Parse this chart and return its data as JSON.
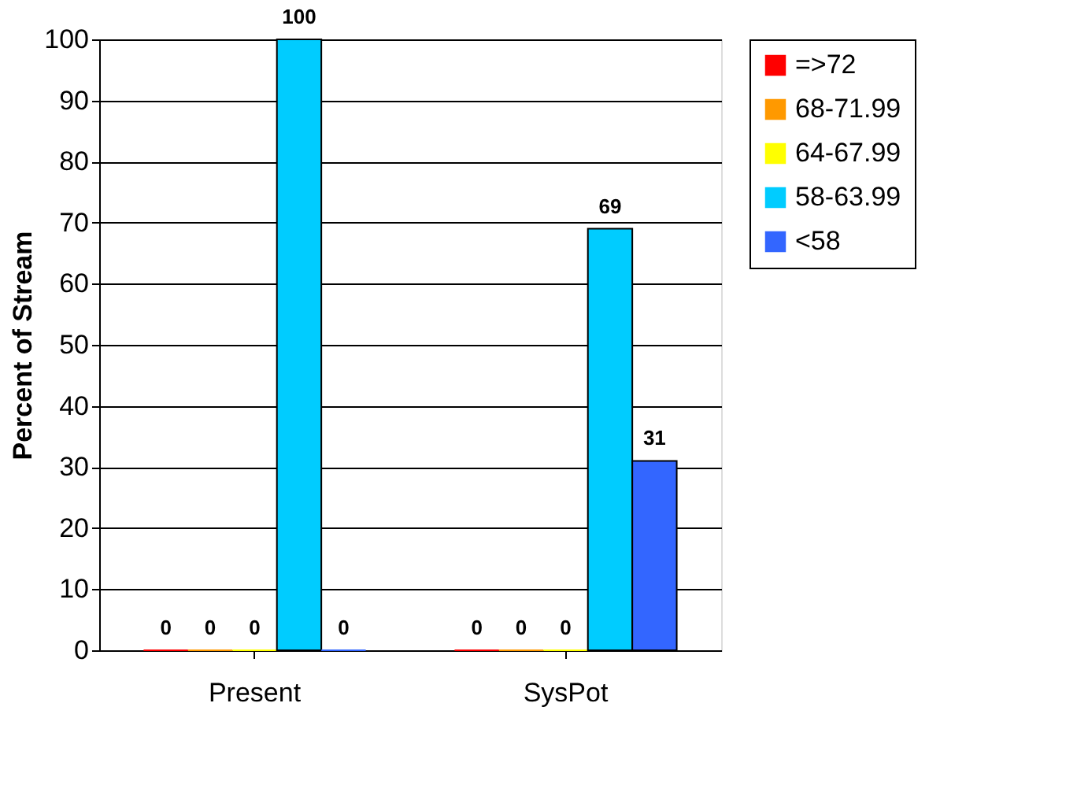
{
  "chart_data": {
    "type": "bar",
    "ylabel": "Percent of Stream",
    "categories": [
      "Present",
      "SysPot"
    ],
    "series": [
      {
        "name": "=>72",
        "color": "#ff0000",
        "values": [
          0,
          0
        ]
      },
      {
        "name": "68-71.99",
        "color": "#ff9900",
        "values": [
          0,
          0
        ]
      },
      {
        "name": "64-67.99",
        "color": "#ffff00",
        "values": [
          0,
          0
        ]
      },
      {
        "name": "58-63.99",
        "color": "#00ccff",
        "values": [
          100,
          69
        ]
      },
      {
        "name": "<58",
        "color": "#3366ff",
        "values": [
          0,
          31
        ]
      }
    ],
    "ylim": [
      0,
      100
    ],
    "yticks": [
      0,
      10,
      20,
      30,
      40,
      50,
      60,
      70,
      80,
      90,
      100
    ],
    "grid": "y",
    "legend": "right",
    "data_labels": true
  }
}
